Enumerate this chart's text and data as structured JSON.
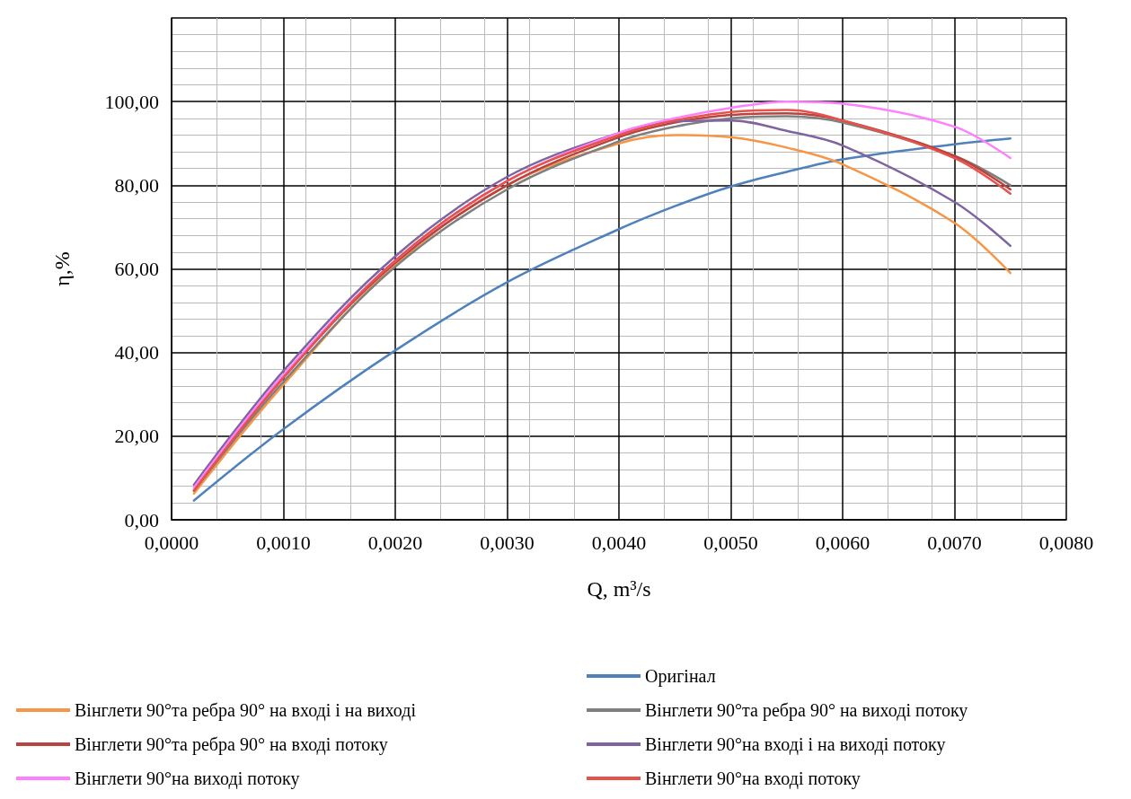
{
  "chart_data": {
    "type": "line",
    "xlabel": "Q, m³/s",
    "ylabel": "η,%",
    "x": [
      0.0002,
      0.001,
      0.002,
      0.003,
      0.004,
      0.0045,
      0.005,
      0.0055,
      0.006,
      0.007,
      0.0075
    ],
    "xlim": [
      0,
      0.008
    ],
    "xticks": [
      {
        "value": 0,
        "label": "0,0000"
      },
      {
        "value": 0.001,
        "label": "0,0010"
      },
      {
        "value": 0.002,
        "label": "0,0020"
      },
      {
        "value": 0.003,
        "label": "0,0030"
      },
      {
        "value": 0.004,
        "label": "0,0040"
      },
      {
        "value": 0.005,
        "label": "0,0050"
      },
      {
        "value": 0.006,
        "label": "0,0060"
      },
      {
        "value": 0.007,
        "label": "0,0070"
      },
      {
        "value": 0.008,
        "label": "0,0080"
      }
    ],
    "ylim": [
      0,
      120
    ],
    "yticks": [
      {
        "value": 0,
        "label": "0,00"
      },
      {
        "value": 20,
        "label": "20,00"
      },
      {
        "value": 40,
        "label": "40,00"
      },
      {
        "value": 60,
        "label": "60,00"
      },
      {
        "value": 80,
        "label": "80,00"
      },
      {
        "value": 100,
        "label": "100,00"
      },
      {
        "value": 120,
        "label": null
      }
    ],
    "grid": true,
    "legend": "bottom",
    "marker": "none",
    "line_style": "solid",
    "series": [
      {
        "name": "Оригінал",
        "color": "#4f81bd",
        "values": [
          4.6,
          21.7,
          40.5,
          56.8,
          69.5,
          75,
          79.7,
          83.2,
          86.2,
          89.8,
          91.2
        ]
      },
      {
        "name": "Вінглети 90°та ребра 90° на вході і на виході",
        "color": "#f79646",
        "values": [
          6.3,
          32.3,
          61,
          80,
          90,
          92,
          91.5,
          89,
          85,
          71,
          59
        ]
      },
      {
        "name": "Вінглети 90°та ребра 90° на виході потоку",
        "color": "#7f7f7f",
        "values": [
          7,
          33,
          60.5,
          79,
          90.5,
          94,
          96,
          96.5,
          95,
          87,
          80
        ]
      },
      {
        "name": "Вінглети 90°та ребра 90° на вході потоку",
        "color": "#b8433f",
        "values": [
          7,
          34,
          61.5,
          80,
          91.5,
          95,
          96.8,
          97.2,
          95.5,
          87,
          79
        ]
      },
      {
        "name": "Вінглети 90°на вході і на виході потоку",
        "color": "#8064a2",
        "values": [
          8.4,
          35.6,
          63,
          82,
          92.5,
          95.3,
          95.5,
          93,
          89.5,
          76,
          65.5
        ]
      },
      {
        "name": "Вінглети 90°на виході потоку",
        "color": "#ff80ff",
        "values": [
          7.7,
          34.7,
          62,
          81,
          92.5,
          96,
          98.5,
          100,
          99.5,
          94,
          86.5
        ]
      },
      {
        "name": "Вінглети 90°на вході потоку",
        "color": "#e5534b",
        "values": [
          7,
          34,
          62,
          81,
          92,
          95.5,
          97.5,
          98,
          95.5,
          86.5,
          78
        ]
      }
    ]
  }
}
